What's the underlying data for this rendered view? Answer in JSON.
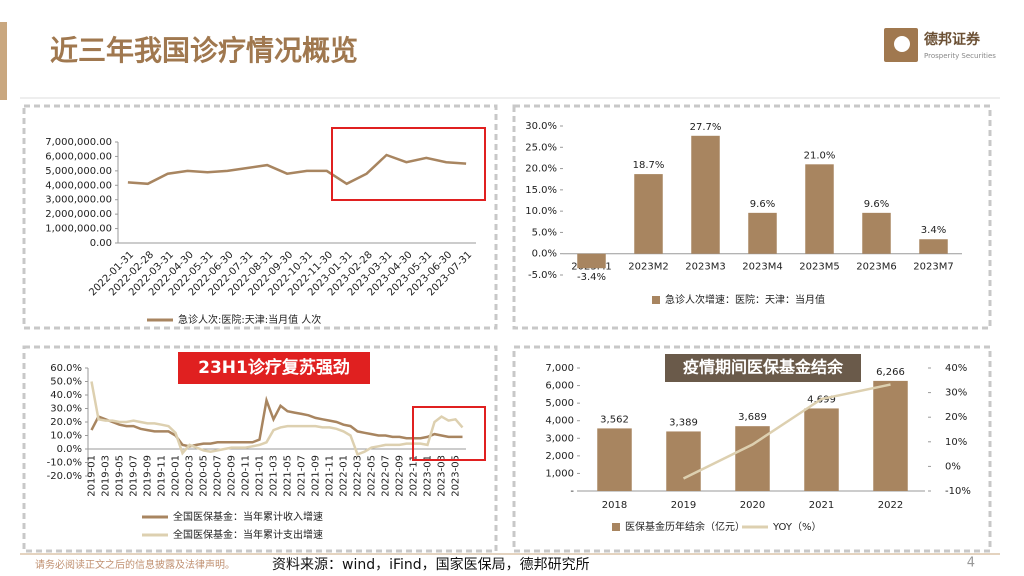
{
  "header": {
    "title": "近三年我国诊疗情况概览",
    "logo_name": "德邦证券",
    "logo_subtitle": "Prosperity Securities"
  },
  "badges": [
    "23H1诊疗复苏强劲",
    "疫情期间医保基金结余"
  ],
  "footer": {
    "disclaimer": "请务必阅读正文之后的信息披露及法律声明。",
    "source": "资料来源：wind，iFind，国家医保局，德邦研究所",
    "page_number": "4"
  },
  "chart_data": [
    {
      "type": "line",
      "categories": [
        "2022-01-31",
        "2022-02-28",
        "2022-03-31",
        "2022-04-30",
        "2022-05-31",
        "2022-06-30",
        "2022-07-31",
        "2022-08-31",
        "2022-09-30",
        "2022-10-31",
        "2022-11-30",
        "2023-01-31",
        "2023-02-28",
        "2023-03-31",
        "2023-04-30",
        "2023-05-31",
        "2023-06-30",
        "2023-07-31"
      ],
      "series": [
        {
          "name": "急诊人次:医院:天津:当月值 人次",
          "color": "#a88560",
          "values": [
            4200000,
            4100000,
            4800000,
            5000000,
            4900000,
            5000000,
            5200000,
            5400000,
            4800000,
            5000000,
            5000000,
            4100000,
            4800000,
            6100000,
            5600000,
            5900000,
            5600000,
            5500000
          ]
        }
      ],
      "ylim": [
        0,
        7000000
      ],
      "yticks": [
        {
          "value": 0,
          "label": "0.00"
        },
        {
          "value": 1000000,
          "label": "1,000,000.00"
        },
        {
          "value": 2000000,
          "label": "2,000,000.00"
        },
        {
          "value": 3000000,
          "label": "3,000,000.00"
        },
        {
          "value": 4000000,
          "label": "4,000,000.00"
        },
        {
          "value": 5000000,
          "label": "5,000,000.00"
        },
        {
          "value": 6000000,
          "label": "6,000,000.00"
        },
        {
          "value": 7000000,
          "label": "7,000,000.00"
        }
      ],
      "grid": false
    },
    {
      "type": "bar",
      "categories": [
        "2023M1",
        "2023M2",
        "2023M3",
        "2023M4",
        "2023M5",
        "2023M6",
        "2023M7"
      ],
      "series": [
        {
          "name": "急诊人次增速：医院：天津：当月值",
          "color": "#a88560",
          "values": [
            -3.4,
            18.7,
            27.7,
            9.6,
            21.0,
            9.6,
            3.4
          ],
          "value_labels": [
            "-3.4%",
            "18.7%",
            "27.7%",
            "9.6%",
            "21.0%",
            "9.6%",
            "3.4%"
          ]
        }
      ],
      "ylim": [
        -5,
        30
      ],
      "yticks": [
        {
          "value": -5,
          "label": "-5.0%"
        },
        {
          "value": 0,
          "label": "0.0%"
        },
        {
          "value": 5,
          "label": "5.0%"
        },
        {
          "value": 10,
          "label": "10.0%"
        },
        {
          "value": 15,
          "label": "15.0%"
        },
        {
          "value": 20,
          "label": "20.0%"
        },
        {
          "value": 25,
          "label": "25.0%"
        },
        {
          "value": 30,
          "label": "30.0%"
        }
      ],
      "grid": false
    },
    {
      "type": "line",
      "categories": [
        "2019-01",
        null,
        "2019-03",
        null,
        "2019-05",
        null,
        "2019-07",
        null,
        "2019-09",
        null,
        "2019-11",
        null,
        "2020-01",
        null,
        "2020-03",
        null,
        "2020-05",
        null,
        "2020-07",
        null,
        "2020-09",
        null,
        "2020-11",
        null,
        "2021-01",
        null,
        "2021-03",
        null,
        "2021-05",
        null,
        "2021-07",
        null,
        "2021-09",
        null,
        "2021-11",
        null,
        "2022-01",
        null,
        "2022-03",
        null,
        "2022-05",
        null,
        "2022-07",
        null,
        "2022-09",
        null,
        "2022-11",
        null,
        "2023-01",
        null,
        "2023-03",
        null,
        "2023-05",
        null
      ],
      "series": [
        {
          "name": "全国医保基金：当年累计收入增速",
          "color": "#a88560",
          "values": [
            14,
            24,
            22,
            20,
            18,
            17,
            17,
            15,
            14,
            13,
            13,
            13,
            10,
            3,
            2,
            3,
            4,
            4,
            5,
            5,
            5,
            5,
            5,
            5,
            7,
            36,
            22,
            32,
            28,
            27,
            26,
            25,
            23,
            22,
            21,
            20,
            18,
            17,
            13,
            12,
            11,
            10,
            10,
            9,
            9,
            8,
            8,
            8,
            9,
            11,
            10,
            9,
            9,
            9
          ]
        },
        {
          "name": "全国医保基金：当年累计支出增速",
          "color": "#ddd0b0",
          "values": [
            50,
            22,
            21,
            21,
            20,
            20,
            21,
            20,
            19,
            19,
            18,
            17,
            12,
            -3,
            3,
            1,
            -1,
            -2,
            -1,
            0,
            1,
            1,
            1,
            2,
            3,
            5,
            14,
            16,
            17,
            17,
            17,
            17,
            17,
            16,
            16,
            15,
            13,
            10,
            -4,
            -2,
            1,
            2,
            3,
            3,
            3,
            4,
            4,
            4,
            3,
            20,
            24,
            21,
            22,
            16
          ]
        }
      ],
      "ylim": [
        -20,
        60
      ],
      "yticks": [
        {
          "value": -20,
          "label": "-20.0%"
        },
        {
          "value": -10,
          "label": "-10.0%"
        },
        {
          "value": 0,
          "label": "0.0%"
        },
        {
          "value": 10,
          "label": "10.0%"
        },
        {
          "value": 20,
          "label": "20.0%"
        },
        {
          "value": 30,
          "label": "30.0%"
        },
        {
          "value": 40,
          "label": "40.0%"
        },
        {
          "value": 50,
          "label": "50.0%"
        },
        {
          "value": 60,
          "label": "60.0%"
        }
      ],
      "grid": false
    },
    {
      "type": "combo",
      "categories": [
        "2018",
        "2019",
        "2020",
        "2021",
        "2022"
      ],
      "series": [
        {
          "name": "医保基金历年结余（亿元）",
          "type": "bar",
          "color": "#a88560",
          "values": [
            3562,
            3389,
            3689,
            4699,
            6266
          ],
          "value_labels": [
            "3,562",
            "3,389",
            "3,689",
            "4,699",
            "6,266"
          ]
        },
        {
          "name": "YOY（%）",
          "type": "line",
          "axis": "y2",
          "color": "#ddd0b0",
          "values": [
            null,
            -4.9,
            8.9,
            27.4,
            33.3
          ]
        }
      ],
      "ylim": [
        0,
        7000
      ],
      "yticks": [
        {
          "value": 0,
          "label": "-"
        },
        {
          "value": 1000,
          "label": "1,000"
        },
        {
          "value": 2000,
          "label": "2,000"
        },
        {
          "value": 3000,
          "label": "3,000"
        },
        {
          "value": 4000,
          "label": "4,000"
        },
        {
          "value": 5000,
          "label": "5,000"
        },
        {
          "value": 6000,
          "label": "6,000"
        },
        {
          "value": 7000,
          "label": "7,000"
        }
      ],
      "y2lim": [
        -10,
        40
      ],
      "y2ticks": [
        {
          "value": -10,
          "label": "-10%"
        },
        {
          "value": 0,
          "label": "0%"
        },
        {
          "value": 10,
          "label": "10%"
        },
        {
          "value": 20,
          "label": "20%"
        },
        {
          "value": 30,
          "label": "30%"
        },
        {
          "value": 40,
          "label": "40%"
        }
      ],
      "grid": false
    }
  ]
}
